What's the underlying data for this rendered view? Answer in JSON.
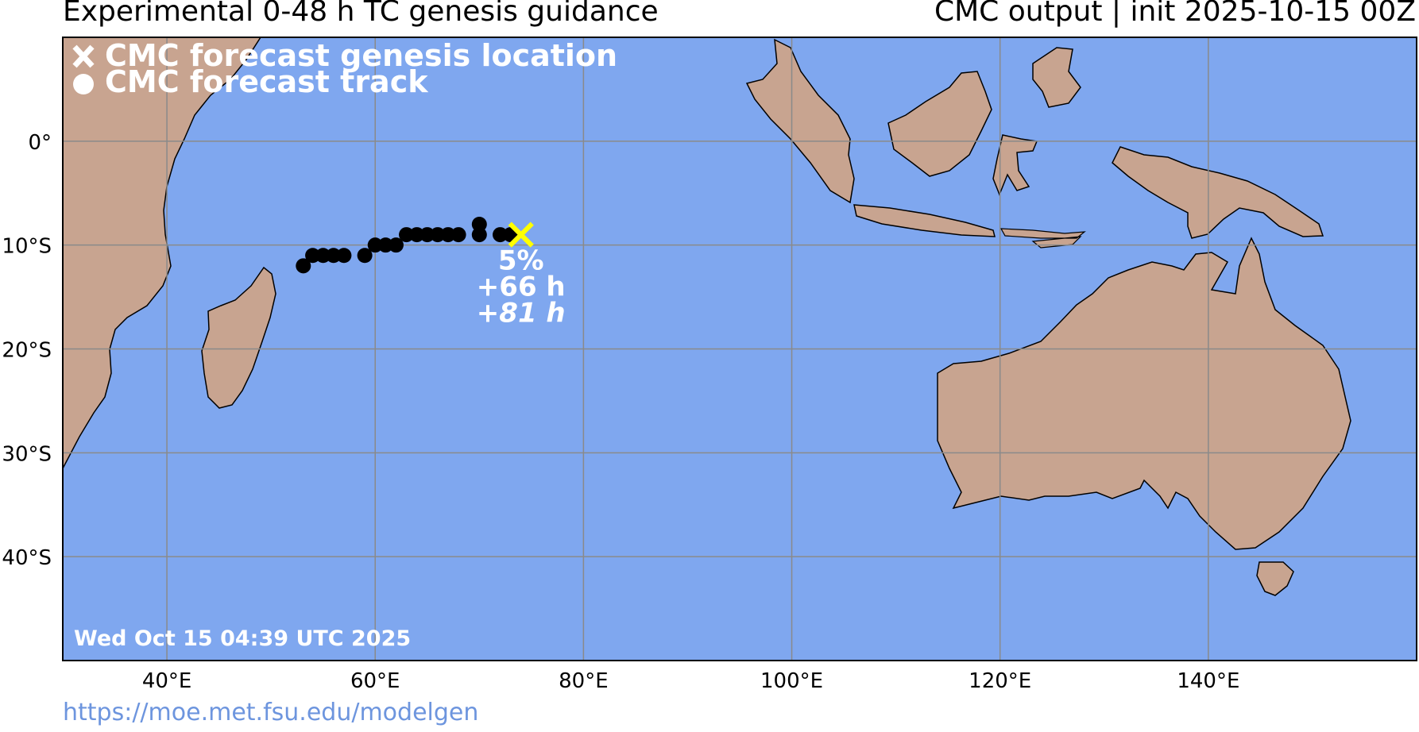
{
  "header": {
    "title_left": "Experimental 0-48 h TC genesis guidance",
    "title_right": "CMC output | init 2025-10-15 00Z"
  },
  "legend": {
    "genesis_label": "CMC forecast genesis location",
    "track_label": "CMC forecast track"
  },
  "map": {
    "extent": {
      "lon_min": 30,
      "lon_max": 160,
      "lat_min": -50,
      "lat_max": 10
    },
    "lat_ticks": [
      {
        "lat": 0,
        "label": "0°"
      },
      {
        "lat": -10,
        "label": "10°S"
      },
      {
        "lat": -20,
        "label": "20°S"
      },
      {
        "lat": -30,
        "label": "30°S"
      },
      {
        "lat": -40,
        "label": "40°S"
      }
    ],
    "lon_ticks": [
      {
        "lon": 40,
        "label": "40°E"
      },
      {
        "lon": 60,
        "label": "60°E"
      },
      {
        "lon": 80,
        "label": "80°E"
      },
      {
        "lon": 100,
        "label": "100°E"
      },
      {
        "lon": 120,
        "label": "120°E"
      },
      {
        "lon": 140,
        "label": "140°E"
      }
    ],
    "colors": {
      "ocean": "#7fa7ef",
      "land": "#c8a490",
      "grid": "#8a8a8a",
      "track": "#000000",
      "genesis": "#ffff00",
      "text_white": "#ffffff"
    }
  },
  "genesis": {
    "lon": 74.0,
    "lat": -9.0,
    "probability": "5%",
    "lead_time": "+66 h",
    "lead_time_alt": "+81 h"
  },
  "track": [
    {
      "lon": 53.1,
      "lat": -12.0
    },
    {
      "lon": 54.0,
      "lat": -11.0
    },
    {
      "lon": 55.0,
      "lat": -11.0
    },
    {
      "lon": 56.0,
      "lat": -11.0
    },
    {
      "lon": 57.0,
      "lat": -11.0
    },
    {
      "lon": 59.0,
      "lat": -11.0
    },
    {
      "lon": 60.0,
      "lat": -10.0
    },
    {
      "lon": 61.0,
      "lat": -10.0
    },
    {
      "lon": 62.0,
      "lat": -10.0
    },
    {
      "lon": 63.0,
      "lat": -9.0
    },
    {
      "lon": 64.0,
      "lat": -9.0
    },
    {
      "lon": 65.0,
      "lat": -9.0
    },
    {
      "lon": 66.0,
      "lat": -9.0
    },
    {
      "lon": 67.0,
      "lat": -9.0
    },
    {
      "lon": 68.0,
      "lat": -9.0
    },
    {
      "lon": 70.0,
      "lat": -9.0
    },
    {
      "lon": 70.0,
      "lat": -8.0
    },
    {
      "lon": 72.0,
      "lat": -9.0
    },
    {
      "lon": 73.0,
      "lat": -9.0
    }
  ],
  "timestamp": "Wed Oct 15 04:39 UTC 2025",
  "footer": {
    "url": "https://moe.met.fsu.edu/modelgen"
  }
}
